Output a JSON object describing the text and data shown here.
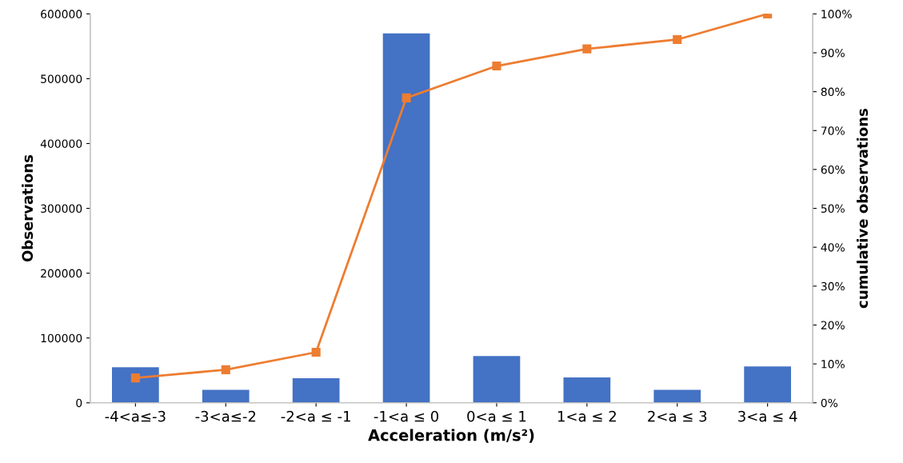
{
  "chart_data": {
    "type": "bar",
    "xlabel": "Acceleration (m/s²)",
    "ylabel": "Observations",
    "y2label": "cumulative observations",
    "categories": [
      "-4<a≤-3",
      "-3<a≤-2",
      "-2<a ≤ -1",
      "-1<a ≤ 0",
      "0<a ≤ 1",
      "1<a ≤ 2",
      "2<a ≤ 3",
      "3<a ≤ 4"
    ],
    "series": [
      {
        "color": "#4472c4",
        "values": [
          55000,
          20000,
          38000,
          570000,
          72000,
          39000,
          20000,
          56000
        ]
      },
      {
        "type": "line",
        "axis": "y2",
        "color": "#ed7d31",
        "marker": "square",
        "line_style": "solid",
        "values": [
          6.4,
          8.5,
          13,
          78.4,
          86.6,
          91,
          93.4,
          100
        ]
      }
    ],
    "ylim": [
      0,
      600000
    ],
    "yticks": [
      0,
      100000,
      200000,
      300000,
      400000,
      500000,
      600000
    ],
    "y2lim": [
      0,
      100
    ],
    "y2ticks": [
      {
        "value": 0,
        "label": "0%"
      },
      {
        "value": 10,
        "label": "10%"
      },
      {
        "value": 20,
        "label": "20%"
      },
      {
        "value": 30,
        "label": "30%"
      },
      {
        "value": 40,
        "label": "40%"
      },
      {
        "value": 50,
        "label": "50%"
      },
      {
        "value": 60,
        "label": "60%"
      },
      {
        "value": 70,
        "label": "70%"
      },
      {
        "value": 80,
        "label": "80%"
      },
      {
        "value": 90,
        "label": "90%"
      },
      {
        "value": 100,
        "label": "100%"
      }
    ],
    "grid": false,
    "legend": false
  }
}
